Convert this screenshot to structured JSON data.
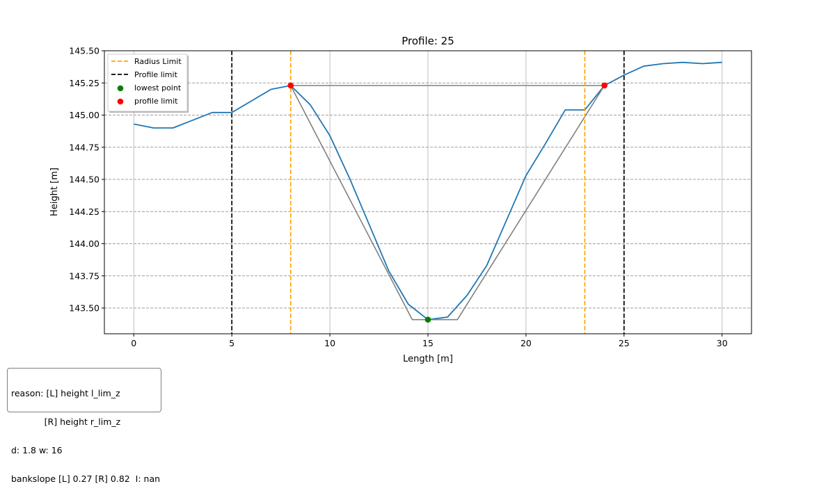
{
  "chart_data": {
    "type": "line",
    "title": "Profile: 25",
    "xlabel": "Length [m]",
    "ylabel": "Height [m]",
    "xlim": [
      -1.5,
      31.5
    ],
    "ylim": [
      143.3,
      145.5
    ],
    "xticks": [
      0,
      5,
      10,
      15,
      20,
      25,
      30
    ],
    "yticks": [
      143.5,
      143.75,
      144.0,
      144.25,
      144.5,
      144.75,
      145.0,
      145.25,
      145.5
    ],
    "xtick_labels": [
      "0",
      "5",
      "10",
      "15",
      "20",
      "25",
      "30"
    ],
    "ytick_labels": [
      "143.50",
      "143.75",
      "144.00",
      "144.25",
      "144.50",
      "144.75",
      "145.00",
      "145.25",
      "145.50"
    ],
    "grid": {
      "x": "solid light gray",
      "y": "dashed gray"
    },
    "legend_position": "top-left",
    "series": [
      {
        "kind": "line",
        "color": "#1f77b4",
        "x": [
          0,
          1,
          2,
          3,
          4,
          5,
          6,
          7,
          8,
          9,
          10,
          11,
          12,
          13,
          14,
          15,
          16,
          17,
          18,
          19,
          20,
          21,
          22,
          23,
          24,
          25,
          26,
          27,
          28,
          29,
          30
        ],
        "y": [
          144.93,
          144.9,
          144.9,
          144.96,
          145.02,
          145.02,
          145.11,
          145.2,
          145.23,
          145.08,
          144.84,
          144.51,
          144.15,
          143.79,
          143.53,
          143.41,
          143.43,
          143.6,
          143.83,
          144.18,
          144.53,
          144.78,
          145.04,
          145.04,
          145.23,
          145.31,
          145.38,
          145.4,
          145.41,
          145.4,
          145.41
        ]
      },
      {
        "kind": "line",
        "color": "#808080",
        "x": [
          8,
          24,
          24,
          16.5,
          14.2,
          8
        ],
        "y": [
          145.23,
          145.23,
          145.23,
          143.41,
          143.41,
          145.23
        ]
      },
      {
        "name": "Radius Limit",
        "kind": "vline",
        "color": "#ffa500",
        "style": "dashed",
        "x": [
          8,
          23
        ]
      },
      {
        "name": "Profile limit",
        "kind": "vline",
        "color": "#000000",
        "style": "dashed",
        "x": [
          5,
          25
        ]
      },
      {
        "name": "lowest point",
        "kind": "scatter",
        "color": "#008000",
        "x": [
          15
        ],
        "y": [
          143.41
        ]
      },
      {
        "name": "profile limit",
        "kind": "scatter",
        "color": "#ff0000",
        "x": [
          8,
          24
        ],
        "y": [
          145.23,
          145.23
        ]
      }
    ]
  },
  "info": {
    "lines": [
      "reason: [L] height l_lim_z",
      "            [R] height r_lim_z",
      "d: 1.8 w: 16",
      "bankslope [L] 0.27 [R] 0.82  I: nan"
    ]
  }
}
